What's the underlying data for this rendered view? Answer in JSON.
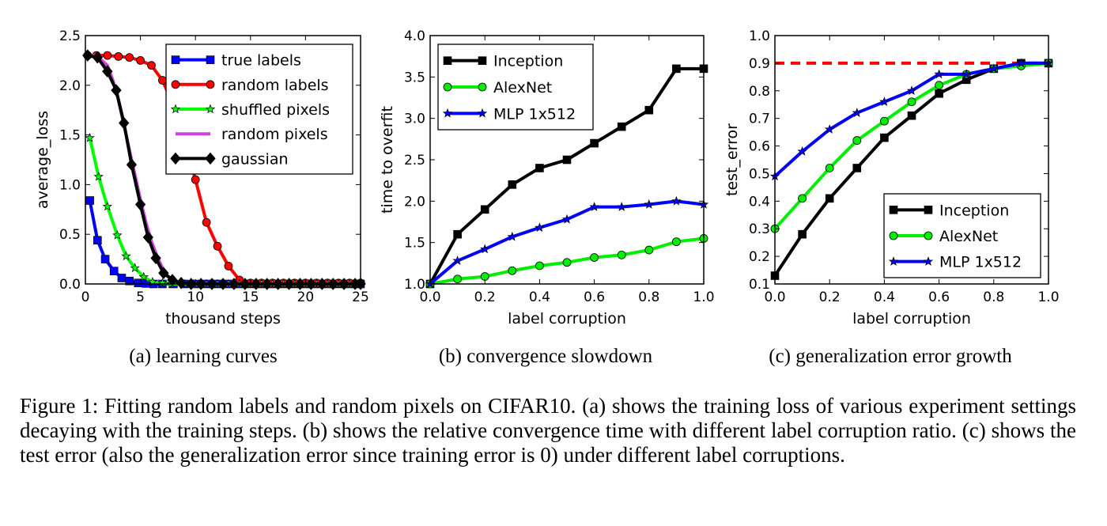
{
  "caption": "Figure 1: Fitting random labels and random pixels on CIFAR10. (a) shows the training loss of various experiment settings decaying with the training steps. (b) shows the relative convergence time with different label corruption ratio. (c) shows the test error (also the generalization error since training error is 0) under different label corruptions.",
  "chart_data": [
    {
      "type": "line",
      "subtitle": "(a) learning curves",
      "xlabel": "thousand steps",
      "ylabel": "average_loss",
      "xlim": [
        0,
        25
      ],
      "ylim": [
        0,
        2.5
      ],
      "xticks": [
        "0",
        "5",
        "10",
        "15",
        "20",
        "25"
      ],
      "yticks": [
        "0.0",
        "0.5",
        "1.0",
        "1.5",
        "2.0",
        "2.5"
      ],
      "legend_position": "top-right",
      "series": [
        {
          "name": "true labels",
          "color": "#0000ff",
          "marker": "square",
          "x": [
            0.4,
            1.1,
            1.8,
            2.6,
            3.3,
            4.0,
            4.8,
            5.5,
            6.2,
            7,
            8,
            9,
            10,
            11,
            12,
            13,
            14,
            15,
            16,
            17,
            18,
            19,
            20,
            21,
            22,
            23,
            24,
            25
          ],
          "y": [
            0.84,
            0.44,
            0.25,
            0.13,
            0.06,
            0.03,
            0.01,
            0.005,
            0,
            0,
            0,
            0,
            0,
            0,
            0,
            0,
            0,
            0,
            0,
            0,
            0,
            0,
            0,
            0,
            0,
            0,
            0,
            0
          ]
        },
        {
          "name": "random labels",
          "color": "#ff0000",
          "marker": "circle",
          "x": [
            0.2,
            1,
            2,
            3,
            4,
            5,
            6,
            7,
            8,
            9,
            10,
            11,
            12,
            13,
            14,
            15,
            16,
            17,
            18,
            19,
            20,
            21,
            22,
            23,
            24,
            25
          ],
          "y": [
            2.3,
            2.3,
            2.3,
            2.29,
            2.28,
            2.25,
            2.2,
            2.05,
            1.8,
            1.45,
            1.05,
            0.62,
            0.38,
            0.18,
            0.04,
            0.01,
            0.01,
            0.01,
            0.01,
            0.01,
            0.01,
            0.01,
            0.01,
            0.01,
            0.01,
            0.01
          ]
        },
        {
          "name": "shuffled pixels",
          "color": "#00ff00",
          "marker": "star",
          "x": [
            0.4,
            1.2,
            2.0,
            2.9,
            3.7,
            4.5,
            5.3,
            6.1,
            7.0,
            7.8,
            9,
            10,
            11,
            12,
            13,
            14,
            15,
            16,
            17,
            18,
            19,
            20,
            21,
            22,
            23,
            24,
            25
          ],
          "y": [
            1.47,
            1.08,
            0.78,
            0.49,
            0.28,
            0.16,
            0.07,
            0.02,
            0.01,
            0,
            0,
            0,
            0,
            0,
            0,
            0,
            0,
            0,
            0,
            0,
            0,
            0,
            0,
            0,
            0,
            0,
            0
          ]
        },
        {
          "name": "random pixels",
          "color": "#cc44dd",
          "marker": "none",
          "x": [
            0.2,
            1,
            2,
            2.5,
            3,
            3.5,
            4,
            4.5,
            5,
            5.5,
            6,
            6.5,
            7,
            7.5,
            8,
            8.5,
            9,
            10,
            15,
            20,
            25
          ],
          "y": [
            2.3,
            2.3,
            2.2,
            2.05,
            1.85,
            1.6,
            1.35,
            1.1,
            0.85,
            0.62,
            0.43,
            0.28,
            0.16,
            0.08,
            0.03,
            0.01,
            0.005,
            0.003,
            0.003,
            0.003,
            0.003
          ]
        },
        {
          "name": "gaussian",
          "color": "#000000",
          "marker": "diamond",
          "x": [
            0.2,
            1.1,
            2.0,
            2.8,
            3.5,
            4.2,
            5.0,
            5.7,
            6.4,
            7.1,
            7.9,
            8.7,
            9.6,
            10.5,
            11.5,
            12.5,
            13.5,
            14.5,
            15.5,
            16.5,
            17.5,
            18.5,
            19.5,
            20.5,
            21.5,
            22.5,
            23.5,
            24.5,
            25
          ],
          "y": [
            2.3,
            2.28,
            2.14,
            1.95,
            1.62,
            1.2,
            0.8,
            0.47,
            0.26,
            0.11,
            0.04,
            0.01,
            0,
            0,
            0,
            0,
            0,
            0,
            0,
            0,
            0,
            0,
            0,
            0,
            0,
            0,
            0,
            0,
            0
          ]
        }
      ]
    },
    {
      "type": "line",
      "subtitle": "(b) convergence slowdown",
      "xlabel": "label corruption",
      "ylabel": "time to overfit",
      "xlim": [
        0,
        1
      ],
      "ylim": [
        1,
        4
      ],
      "xticks": [
        "0.0",
        "0.2",
        "0.4",
        "0.6",
        "0.8",
        "1.0"
      ],
      "yticks": [
        "1.0",
        "1.5",
        "2.0",
        "2.5",
        "3.0",
        "3.5",
        "4.0"
      ],
      "legend_position": "top-left",
      "series": [
        {
          "name": "Inception",
          "color": "#000000",
          "marker": "square",
          "x": [
            0,
            0.1,
            0.2,
            0.3,
            0.4,
            0.5,
            0.6,
            0.7,
            0.8,
            0.9,
            1.0
          ],
          "y": [
            1.0,
            1.6,
            1.9,
            2.2,
            2.4,
            2.5,
            2.7,
            2.9,
            3.1,
            3.6,
            3.6
          ]
        },
        {
          "name": "AlexNet",
          "color": "#00ee00",
          "marker": "circle",
          "x": [
            0,
            0.1,
            0.2,
            0.3,
            0.4,
            0.5,
            0.6,
            0.7,
            0.8,
            0.9,
            1.0
          ],
          "y": [
            1.0,
            1.06,
            1.09,
            1.16,
            1.22,
            1.26,
            1.32,
            1.35,
            1.41,
            1.51,
            1.55
          ]
        },
        {
          "name": "MLP 1x512",
          "color": "#0000ff",
          "marker": "star",
          "x": [
            0,
            0.1,
            0.2,
            0.3,
            0.4,
            0.5,
            0.6,
            0.7,
            0.8,
            0.9,
            1.0
          ],
          "y": [
            1.0,
            1.28,
            1.42,
            1.57,
            1.68,
            1.78,
            1.93,
            1.93,
            1.96,
            2.0,
            1.96
          ]
        }
      ]
    },
    {
      "type": "line",
      "subtitle": "(c) generalization error growth",
      "xlabel": "label corruption",
      "ylabel": "test_error",
      "xlim": [
        0,
        1
      ],
      "ylim": [
        0.1,
        1.0
      ],
      "xticks": [
        "0.0",
        "0.2",
        "0.4",
        "0.6",
        "0.8",
        "1.0"
      ],
      "yticks": [
        "0.1",
        "0.2",
        "0.3",
        "0.4",
        "0.5",
        "0.6",
        "0.7",
        "0.8",
        "0.9",
        "1.0"
      ],
      "legend_position": "bottom-right",
      "reference_line": {
        "y": 0.9,
        "color": "#ff0000",
        "style": "dashed"
      },
      "series": [
        {
          "name": "Inception",
          "color": "#000000",
          "marker": "square",
          "x": [
            0,
            0.1,
            0.2,
            0.3,
            0.4,
            0.5,
            0.6,
            0.7,
            0.8,
            0.9,
            1.0
          ],
          "y": [
            0.13,
            0.28,
            0.41,
            0.52,
            0.63,
            0.71,
            0.79,
            0.84,
            0.88,
            0.9,
            0.9
          ]
        },
        {
          "name": "AlexNet",
          "color": "#00ee00",
          "marker": "circle",
          "x": [
            0,
            0.1,
            0.2,
            0.3,
            0.4,
            0.5,
            0.6,
            0.7,
            0.8,
            0.9,
            1.0
          ],
          "y": [
            0.3,
            0.41,
            0.52,
            0.62,
            0.69,
            0.76,
            0.82,
            0.86,
            0.88,
            0.89,
            0.9
          ]
        },
        {
          "name": "MLP 1x512",
          "color": "#0000ff",
          "marker": "star",
          "x": [
            0,
            0.1,
            0.2,
            0.3,
            0.4,
            0.5,
            0.6,
            0.7,
            0.8,
            0.9,
            1.0
          ],
          "y": [
            0.49,
            0.58,
            0.66,
            0.72,
            0.76,
            0.8,
            0.86,
            0.86,
            0.88,
            0.9,
            0.9
          ]
        }
      ]
    }
  ]
}
